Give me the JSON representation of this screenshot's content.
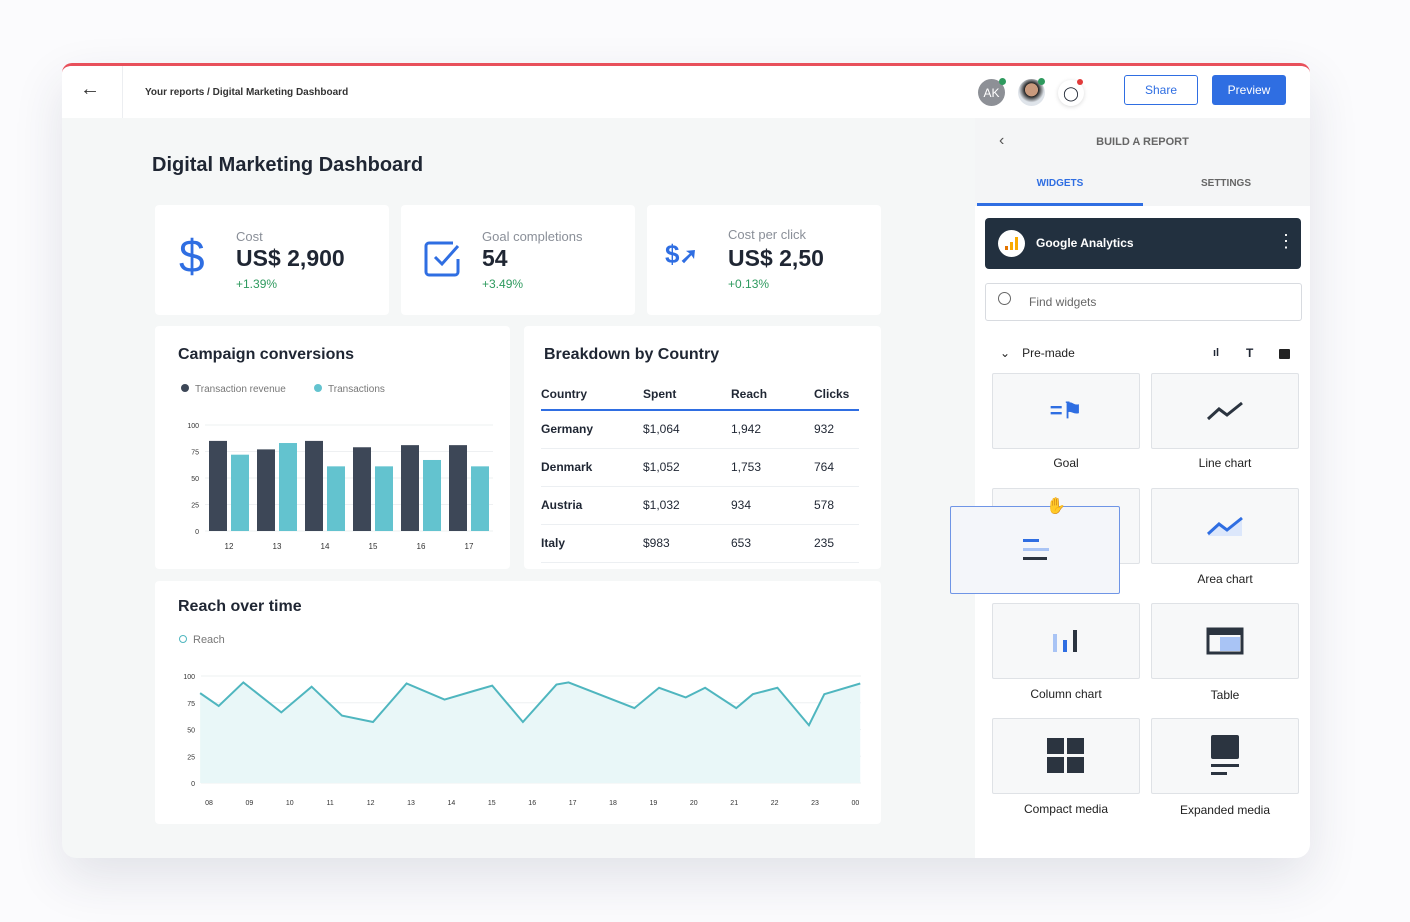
{
  "header": {
    "breadcrumb": "Your reports / Digital Marketing Dashboard",
    "avatar_initials": "AK",
    "share_label": "Share",
    "preview_label": "Preview"
  },
  "page_title": "Digital Marketing Dashboard",
  "kpis": [
    {
      "label": "Cost",
      "value": "US$ 2,900",
      "delta": "+1.39%",
      "icon": "dollar-icon"
    },
    {
      "label": "Goal completions",
      "value": "54",
      "delta": "+3.49%",
      "icon": "checkbox-icon"
    },
    {
      "label": "Cost per click",
      "value": "US$ 2,50",
      "delta": "+0.13%",
      "icon": "dollar-cursor-icon"
    }
  ],
  "colors": {
    "accent": "#2f6ee2",
    "dark_bar": "#3d4757",
    "teal": "#63c3cf",
    "positive": "#2e9a5e",
    "header_stripe": "#e8505b"
  },
  "chart_data": [
    {
      "type": "bar",
      "title": "Campaign conversions",
      "categories": [
        "12",
        "13",
        "14",
        "15",
        "16",
        "17"
      ],
      "series": [
        {
          "name": "Transaction revenue",
          "values": [
            85,
            77,
            85,
            79,
            81,
            81
          ]
        },
        {
          "name": "Transactions",
          "values": [
            72,
            83,
            61,
            61,
            67,
            61
          ]
        }
      ],
      "yticks": [
        "100",
        "75",
        "50",
        "25",
        "0"
      ],
      "ylim": [
        0,
        100
      ],
      "legend": "top-left"
    },
    {
      "type": "area",
      "title": "Reach over time",
      "series": [
        {
          "name": "Reach"
        }
      ],
      "xlabels": [
        "08",
        "09",
        "10",
        "11",
        "12",
        "13",
        "14",
        "15",
        "16",
        "17",
        "18",
        "19",
        "20",
        "21",
        "22",
        "23",
        "00"
      ],
      "x": [
        -0.22,
        0.24,
        0.85,
        1.79,
        2.54,
        3.29,
        4.06,
        4.89,
        5.83,
        6.55,
        7.01,
        7.77,
        8.6,
        8.9,
        10.53,
        11.14,
        11.8,
        12.28,
        13.05,
        13.46,
        14.07,
        14.85,
        15.23,
        16.12
      ],
      "y": [
        84,
        72,
        94,
        66,
        90,
        63,
        57,
        93,
        78,
        86,
        91,
        57,
        92,
        94,
        70,
        89,
        80,
        89,
        70,
        83,
        89,
        54,
        83,
        93
      ],
      "yticks": [
        "100",
        "75",
        "50",
        "25",
        "0"
      ],
      "ylim": [
        0,
        100
      ]
    }
  ],
  "country_table": {
    "title": "Breakdown by Country",
    "columns": [
      "Country",
      "Spent",
      "Reach",
      "Clicks"
    ],
    "rows": [
      [
        "Germany",
        "$1,064",
        "1,942",
        "932"
      ],
      [
        "Denmark",
        "$1,052",
        "1,753",
        "764"
      ],
      [
        "Austria",
        "$1,032",
        "934",
        "578"
      ],
      [
        "Italy",
        "$983",
        "653",
        "235"
      ]
    ]
  },
  "panel": {
    "title": "BUILD A REPORT",
    "tabs": [
      "WIDGETS",
      "SETTINGS"
    ],
    "source": "Google Analytics",
    "search_placeholder": "Find widgets",
    "section": "Pre-made",
    "widgets": [
      "Goal",
      "Line chart",
      "Area chart",
      "Column chart",
      "Table",
      "Compact media",
      "Expanded media"
    ]
  }
}
